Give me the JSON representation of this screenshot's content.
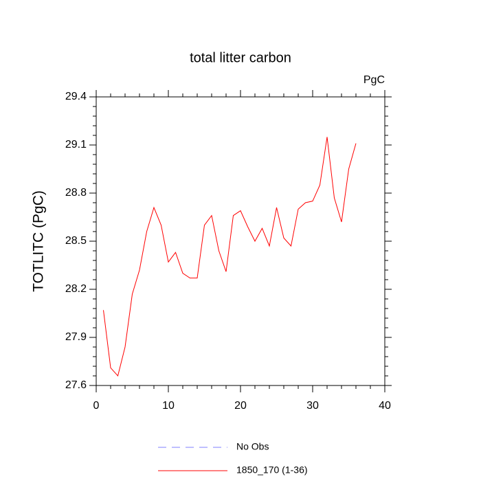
{
  "chart_data": {
    "type": "line",
    "title": "total litter carbon",
    "subtitle": "PgC",
    "y_label": "TOTLITC  (PgC)",
    "x": [
      1,
      2,
      3,
      4,
      5,
      6,
      7,
      8,
      9,
      10,
      11,
      12,
      13,
      14,
      15,
      16,
      17,
      18,
      19,
      20,
      21,
      22,
      23,
      24,
      25,
      26,
      27,
      28,
      29,
      30,
      31,
      32,
      33,
      34,
      35,
      36
    ],
    "series": [
      {
        "name": "No Obs",
        "color": "#7f7fff",
        "dash": true,
        "values": [
          null,
          null,
          null,
          null,
          null,
          null,
          null,
          null,
          null,
          null,
          null,
          null,
          null,
          null,
          null,
          null,
          null,
          null,
          null,
          null,
          null,
          null,
          null,
          null,
          null,
          null,
          null,
          null,
          null,
          null,
          null,
          null,
          null,
          null,
          null,
          null
        ]
      },
      {
        "name": "1850_170 (1-36)",
        "color": "#ff0000",
        "dash": false,
        "values": [
          28.07,
          27.71,
          27.66,
          27.84,
          28.17,
          28.32,
          28.56,
          28.71,
          28.6,
          28.37,
          28.43,
          28.3,
          28.27,
          28.27,
          28.6,
          28.66,
          28.44,
          28.31,
          28.66,
          28.69,
          28.59,
          28.5,
          28.58,
          28.47,
          28.71,
          28.52,
          28.47,
          28.7,
          28.74,
          28.75,
          28.85,
          29.15,
          28.77,
          28.62,
          28.95,
          29.11
        ]
      }
    ],
    "xlim": [
      0,
      40
    ],
    "xticks": [
      0,
      10,
      20,
      30,
      40
    ],
    "ylim": [
      27.6,
      29.4
    ],
    "yticks": [
      27.6,
      27.9,
      28.2,
      28.5,
      28.8,
      29.1,
      29.4
    ],
    "grid": false
  }
}
